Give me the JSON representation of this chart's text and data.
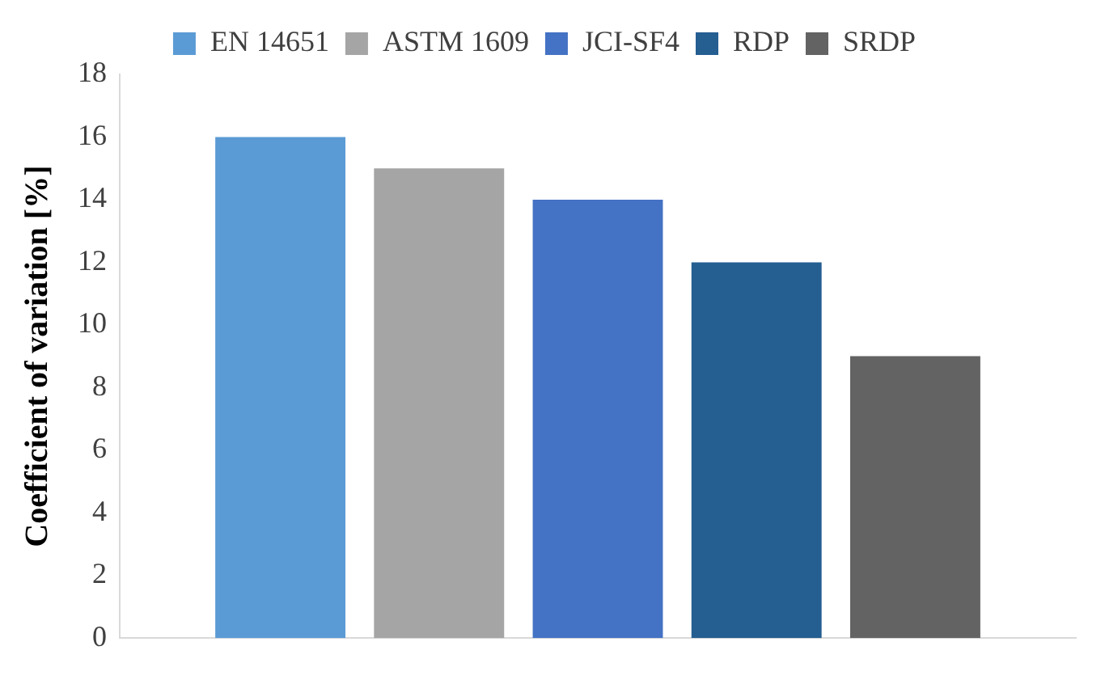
{
  "chart_data": {
    "type": "bar",
    "ylabel": "Coefficient of variation [%]",
    "categories": [
      null
    ],
    "series": [
      {
        "name": "EN 14651",
        "color": "#5b9bd5",
        "values": [
          16
        ]
      },
      {
        "name": "ASTM 1609",
        "color": "#a5a5a5",
        "values": [
          15
        ]
      },
      {
        "name": "JCI-SF4",
        "color": "#4472c4",
        "values": [
          14
        ]
      },
      {
        "name": "RDP",
        "color": "#255e91",
        "values": [
          12
        ]
      },
      {
        "name": "SRDP",
        "color": "#636363",
        "values": [
          9
        ]
      }
    ],
    "ylim": [
      0,
      18
    ],
    "yticks": [
      0,
      2,
      4,
      6,
      8,
      10,
      12,
      14,
      16,
      18
    ],
    "grid": false,
    "legend": "top"
  }
}
